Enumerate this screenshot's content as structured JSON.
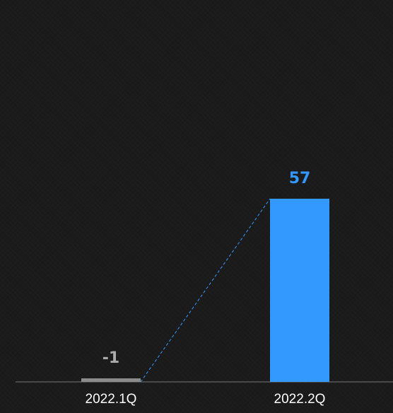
{
  "chart_data": {
    "type": "bar",
    "categories": [
      "2022.1Q",
      "2022.2Q"
    ],
    "values": [
      -1,
      57
    ],
    "data_labels": [
      "-1",
      "57"
    ],
    "title": "",
    "xlabel": "",
    "ylabel": "",
    "grid": false,
    "legend": "none",
    "connector": "dashed line joining the tops of the bars",
    "colors": {
      "background": "#1b1b1c",
      "bar_highlight": "#3399ff",
      "bar_muted": "#8c8c8c",
      "label_highlight": "#3399ff",
      "label_muted": "#aaaaaa",
      "axis": "#777777",
      "tick_text": "#ffffff",
      "connector": "#3399ff"
    }
  }
}
